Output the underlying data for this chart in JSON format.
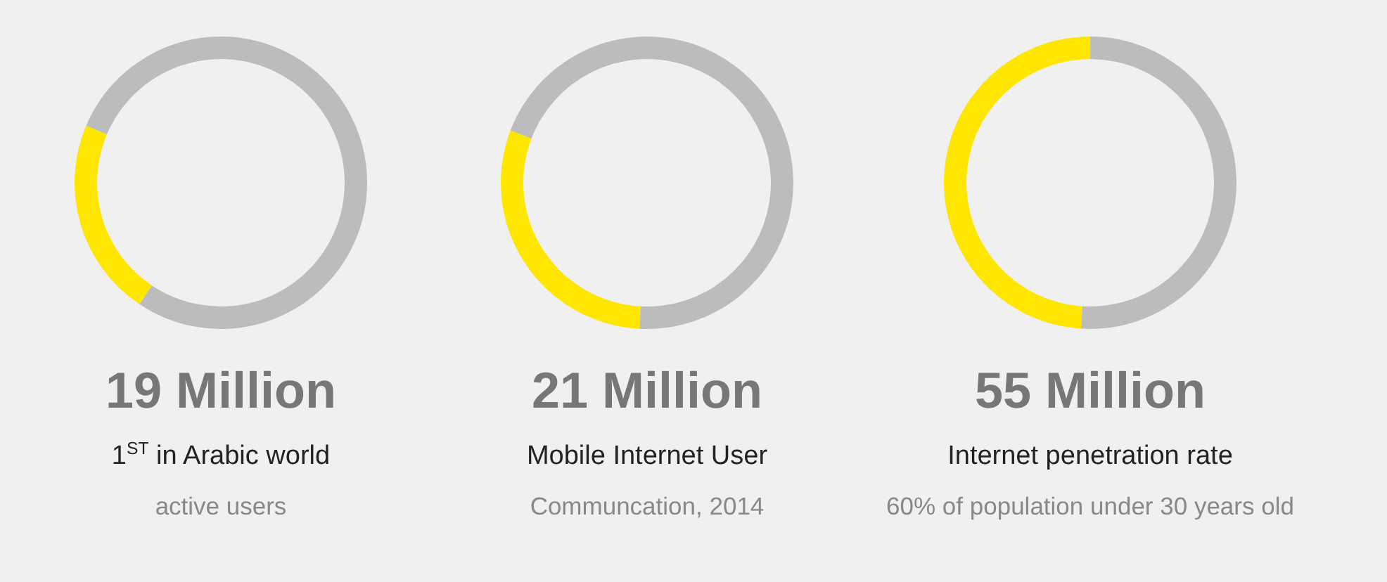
{
  "chart_data": [
    {
      "type": "donut",
      "title": "19 Million",
      "subtitle": "1$^{ST}$ in Arabic world",
      "annotations": [
        "active users"
      ],
      "categories": [
        null,
        null
      ],
      "values": [
        22,
        78
      ],
      "colors": [
        "#ffe600",
        "#bcbcbc"
      ]
    },
    {
      "type": "donut",
      "title": "21 Million",
      "subtitle": "Mobile Internet User",
      "annotations": [
        "Communcation, 2014"
      ],
      "categories": [
        null,
        null
      ],
      "values": [
        30,
        70
      ],
      "colors": [
        "#ffe600",
        "#bcbcbc"
      ]
    },
    {
      "type": "donut",
      "title": "55 Million",
      "subtitle": "Internet penetration rate",
      "annotations": [
        "60% of population under 30 years old"
      ],
      "categories": [
        null,
        null
      ],
      "values": [
        49,
        51
      ],
      "colors": [
        "#ffe600",
        "#bcbcbc"
      ]
    }
  ]
}
